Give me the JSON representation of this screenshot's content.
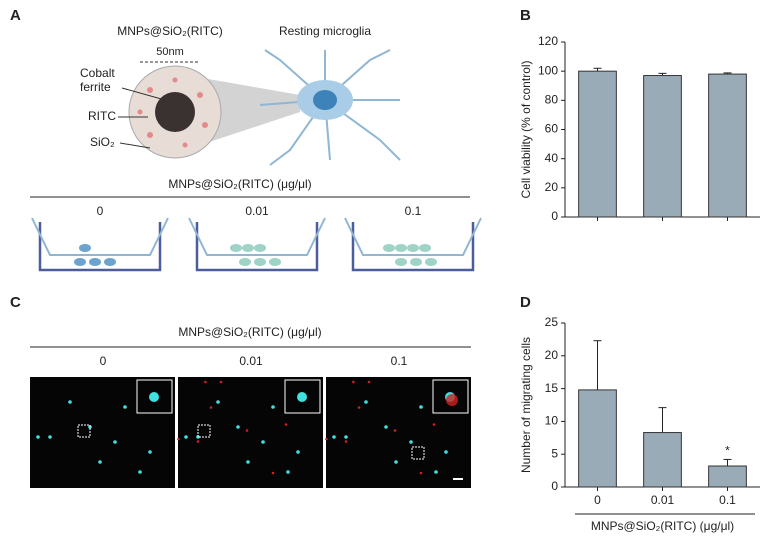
{
  "panel_a": {
    "label": "A",
    "particle_title": "MNPs@SiO₂(RITC)",
    "size": "50nm",
    "core": [
      "Cobalt",
      "ferrite"
    ],
    "dye": "RITC",
    "shell": "SiO₂",
    "cell": "Resting microglia",
    "dose_title": "MNPs@SiO₂(RITC) (μg/μl)",
    "doses": [
      "0",
      "0.01",
      "0.1"
    ]
  },
  "panel_b": {
    "label": "B"
  },
  "panel_c": {
    "label": "C",
    "dose_title": "MNPs@SiO₂(RITC) (μg/μl)",
    "doses": [
      "0",
      "0.01",
      "0.1"
    ]
  },
  "panel_d": {
    "label": "D"
  },
  "chart_data": [
    {
      "type": "bar",
      "ylabel": "Cell viability (% of control)",
      "categories": [
        null,
        null,
        null
      ],
      "values": [
        100,
        97,
        98
      ],
      "errors": [
        2,
        1.5,
        0.8
      ],
      "color": "#9aabb8",
      "ylim": [
        0,
        120
      ],
      "yticks": [
        0,
        20,
        40,
        60,
        80,
        100,
        120
      ]
    },
    {
      "type": "bar",
      "ylabel": "Number of migrating cells",
      "xlabel": "MNPs@SiO₂(RITC) (μg/μl)",
      "categories": [
        "0",
        "0.01",
        "0.1"
      ],
      "values": [
        14.8,
        8.3,
        3.2
      ],
      "errors": [
        7.5,
        3.8,
        1.0
      ],
      "color": "#9aabb8",
      "ylim": [
        0,
        25
      ],
      "yticks": [
        0,
        5,
        10,
        15,
        20,
        25
      ],
      "annotations": [
        {
          "category": "0.1",
          "text": "*"
        }
      ]
    }
  ]
}
